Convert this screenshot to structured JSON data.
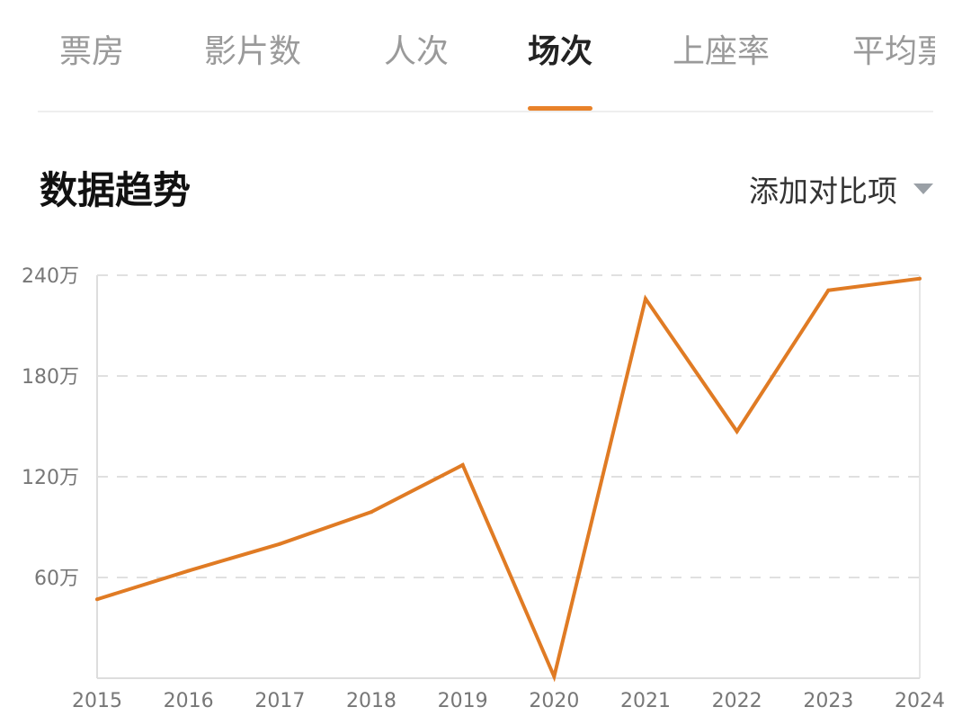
{
  "tabs": [
    {
      "label": "票房",
      "active": false
    },
    {
      "label": "影片数",
      "active": false
    },
    {
      "label": "人次",
      "active": false
    },
    {
      "label": "场次",
      "active": true
    },
    {
      "label": "上座率",
      "active": false
    },
    {
      "label": "平均票",
      "active": false
    }
  ],
  "section_title": "数据趋势",
  "compare_button": {
    "label": "添加对比项",
    "icon": "caret-down-icon"
  },
  "colors": {
    "accent": "#e8822a",
    "line": "#e07b24",
    "grid": "#e0e0e0"
  },
  "chart_data": {
    "type": "line",
    "title": "",
    "xlabel": "",
    "ylabel": "",
    "categories": [
      "2015",
      "2016",
      "2017",
      "2018",
      "2019",
      "2020",
      "2021",
      "2022",
      "2023",
      "2024"
    ],
    "values": [
      470000,
      640000,
      800000,
      990000,
      1270000,
      10000,
      2260000,
      1470000,
      2310000,
      2380000
    ],
    "ylim": [
      0,
      2400000
    ],
    "yticks": [
      600000,
      1200000,
      1800000,
      2400000
    ],
    "ytick_labels": [
      "60万",
      "120万",
      "180万",
      "240万"
    ],
    "grid": true,
    "grid_style": "dashed-horizontal",
    "legend": "none"
  }
}
